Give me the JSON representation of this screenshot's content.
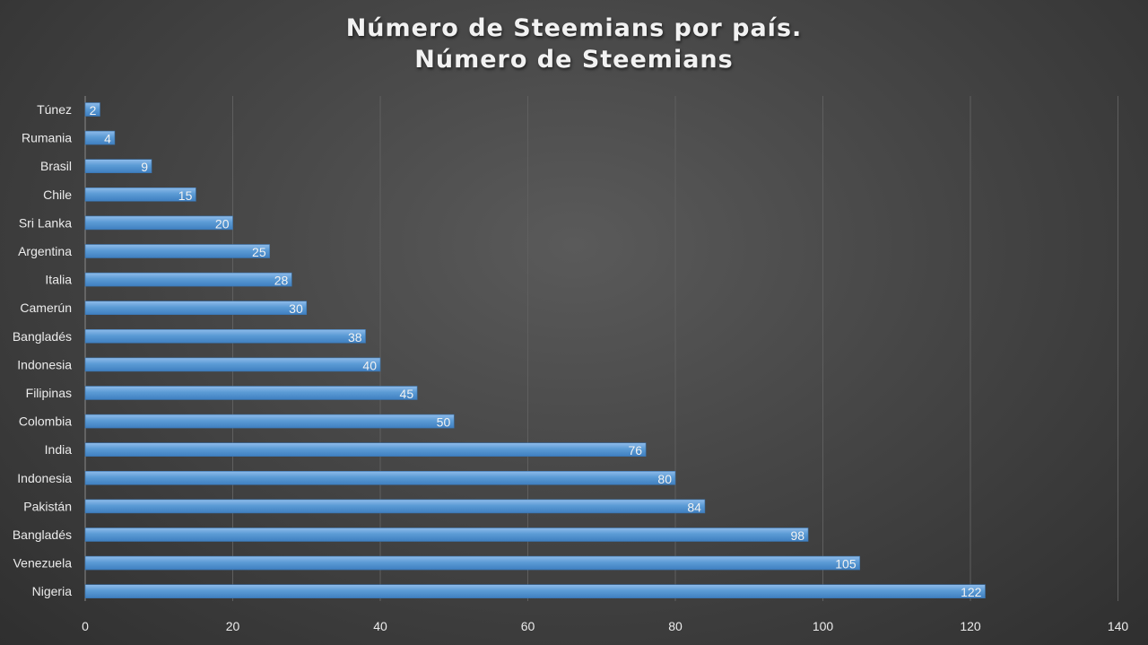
{
  "chart_data": {
    "type": "bar",
    "orientation": "horizontal",
    "title": "Número de Steemians por país.",
    "subtitle": "Número de Steemians",
    "categories": [
      "Túnez",
      "Rumania",
      "Brasil",
      "Chile",
      "Sri Lanka",
      "Argentina",
      "Italia",
      "Camerún",
      "Bangladés",
      "Indonesia",
      "Filipinas",
      "Colombia",
      "India",
      "Indonesia",
      "Pakistán",
      "Bangladés",
      "Venezuela",
      "Nigeria"
    ],
    "values": [
      2,
      4,
      9,
      15,
      20,
      25,
      28,
      30,
      38,
      40,
      45,
      50,
      76,
      80,
      84,
      98,
      105,
      122
    ],
    "xlim": [
      0,
      140
    ],
    "xticks": [
      "0",
      "20",
      "40",
      "60",
      "80",
      "100",
      "120",
      "140"
    ],
    "grid": "vertical",
    "legend": "none",
    "data_labels": true,
    "colors": {
      "bar": "#5b9bd5",
      "bar_light": "#8fbcea",
      "bar_dark": "#3f7fc0",
      "text": "#f2f2f2"
    }
  }
}
